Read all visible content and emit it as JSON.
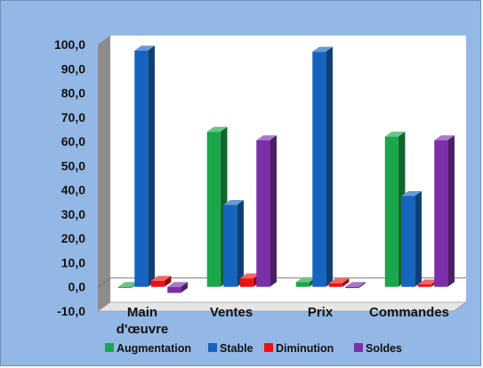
{
  "chart_data": {
    "type": "bar",
    "title": "",
    "xlabel": "",
    "ylabel": "",
    "ylim": [
      -10,
      100
    ],
    "y_ticks": [
      "-10,0",
      "0,0",
      "10,0",
      "20,0",
      "30,0",
      "40,0",
      "50,0",
      "60,0",
      "70,0",
      "80,0",
      "90,0",
      "100,0"
    ],
    "categories": [
      "Main d'œuvre",
      "Ventes",
      "Prix",
      "Commandes"
    ],
    "category_lines": [
      [
        "Main",
        "d'œuvre"
      ],
      [
        "Ventes"
      ],
      [
        "Prix"
      ],
      [
        "Commandes"
      ]
    ],
    "series": [
      {
        "name": "Augmentation",
        "color": "#1aa64a",
        "values": [
          0.0,
          64.0,
          2.0,
          62.0
        ]
      },
      {
        "name": "Stable",
        "color": "#1565c0",
        "values": [
          97.5,
          33.8,
          97.0,
          37.5
        ]
      },
      {
        "name": "Diminution",
        "color": "#ee1111",
        "values": [
          2.5,
          3.5,
          1.5,
          1.0
        ]
      },
      {
        "name": "Soldes",
        "color": "#7b2fa8",
        "values": [
          -2.5,
          60.5,
          -0.5,
          60.5
        ]
      }
    ],
    "legend_position": "bottom",
    "grid": false,
    "style": "3d-clustered-column"
  }
}
